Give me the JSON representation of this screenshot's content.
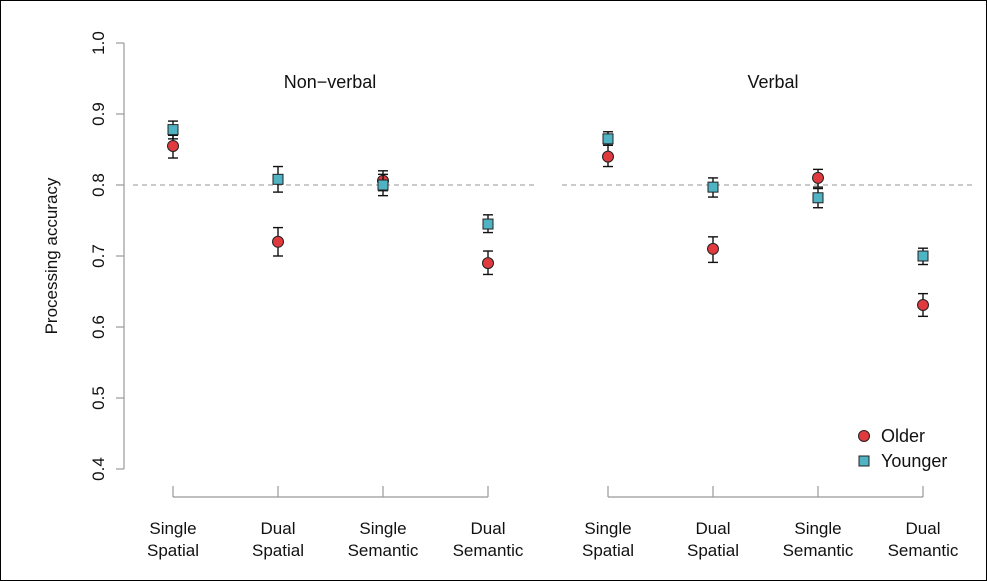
{
  "chart_data": {
    "type": "scatter",
    "ylabel": "Processing accuracy",
    "ylim": [
      0.4,
      1.0
    ],
    "yticks": [
      "0.4",
      "0.5",
      "0.6",
      "0.7",
      "0.8",
      "0.9",
      "1.0"
    ],
    "reference_line": 0.8,
    "grid": false,
    "legend": "bottom-right",
    "colors": {
      "Older": "#e0393e",
      "Younger": "#4fb3c4",
      "reference": "#aaaaaa"
    },
    "categories": [
      [
        "Single",
        "Spatial"
      ],
      [
        "Dual",
        "Spatial"
      ],
      [
        "Single",
        "Semantic"
      ],
      [
        "Dual",
        "Semantic"
      ]
    ],
    "panels": [
      {
        "title": "Non−verbal",
        "series": [
          {
            "name": "Older",
            "marker": "circle",
            "values": [
              0.855,
              0.72,
              0.806,
              0.69
            ],
            "lower": [
              0.838,
              0.7,
              0.792,
              0.674
            ],
            "upper": [
              0.87,
              0.74,
              0.82,
              0.707
            ]
          },
          {
            "name": "Younger",
            "marker": "square",
            "values": [
              0.878,
              0.808,
              0.8,
              0.745
            ],
            "lower": [
              0.865,
              0.79,
              0.785,
              0.733
            ],
            "upper": [
              0.89,
              0.826,
              0.815,
              0.758
            ]
          }
        ]
      },
      {
        "title": "Verbal",
        "series": [
          {
            "name": "Older",
            "marker": "circle",
            "values": [
              0.84,
              0.71,
              0.81,
              0.631
            ],
            "lower": [
              0.826,
              0.691,
              0.797,
              0.615
            ],
            "upper": [
              0.856,
              0.727,
              0.822,
              0.647
            ]
          },
          {
            "name": "Younger",
            "marker": "square",
            "values": [
              0.865,
              0.797,
              0.782,
              0.7
            ],
            "lower": [
              0.856,
              0.783,
              0.768,
              0.688
            ],
            "upper": [
              0.875,
              0.81,
              0.795,
              0.711
            ]
          }
        ]
      }
    ]
  }
}
